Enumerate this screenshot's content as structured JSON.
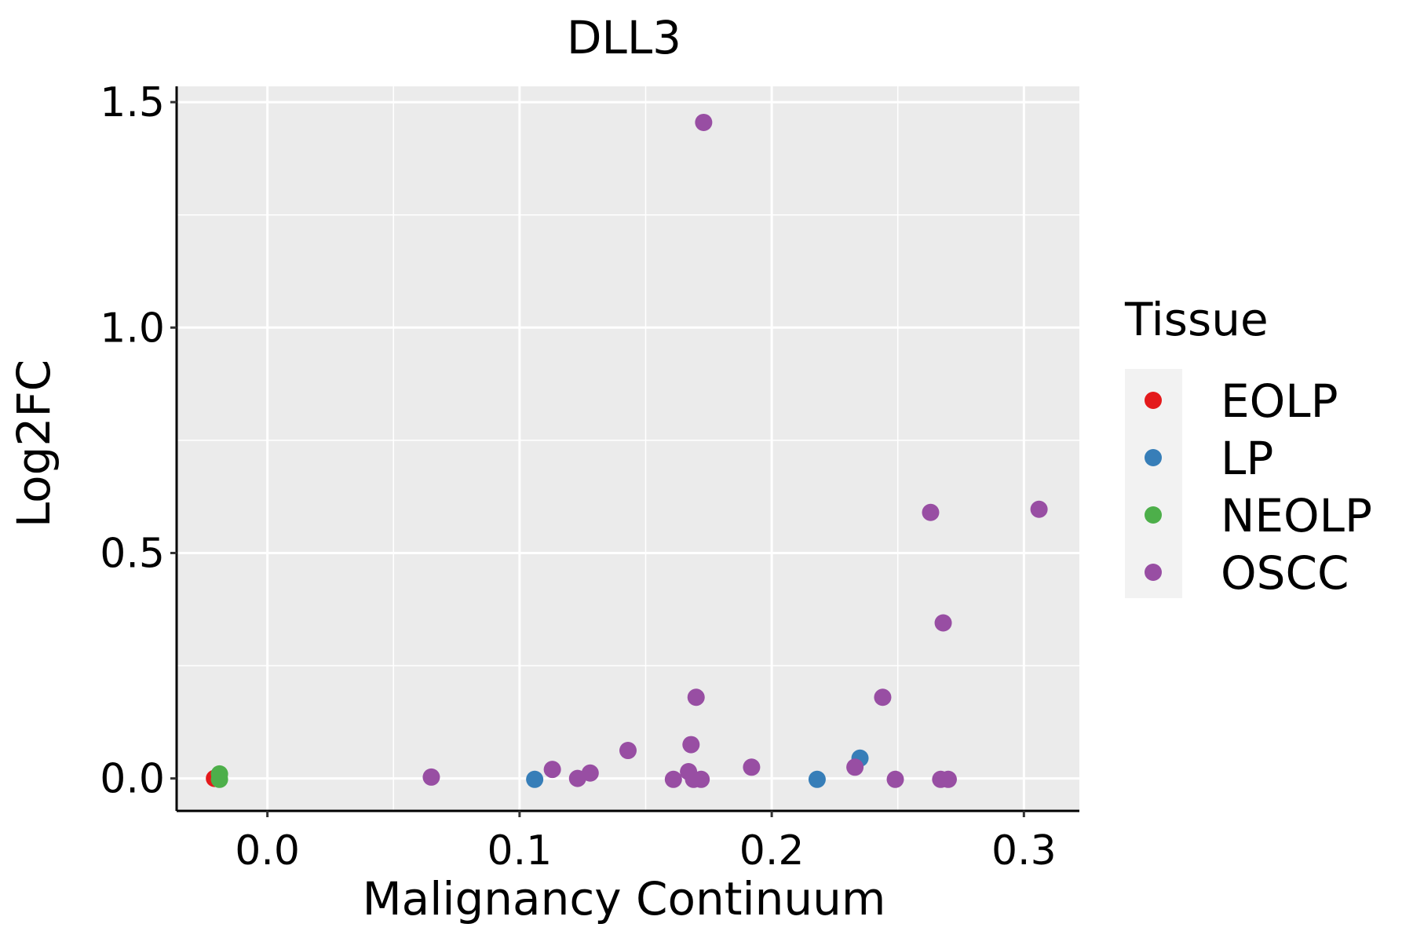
{
  "chart_data": {
    "type": "scatter",
    "title": "DLL3",
    "xlabel": "Malignancy Continuum",
    "ylabel": "Log2FC",
    "xlim": [
      -0.036,
      0.322
    ],
    "ylim": [
      -0.072,
      1.535
    ],
    "x_ticks": [
      0.0,
      0.1,
      0.2,
      0.3
    ],
    "x_tick_labels": [
      "0.0",
      "0.1",
      "0.2",
      "0.3"
    ],
    "y_ticks": [
      0.0,
      0.5,
      1.0,
      1.5
    ],
    "y_tick_labels": [
      "0.0",
      "0.5",
      "1.0",
      "1.5"
    ],
    "x_minor": [
      0.05,
      0.15,
      0.25
    ],
    "y_minor": [
      0.25,
      0.75,
      1.25
    ],
    "grid": true,
    "legend": {
      "title": "Tissue",
      "position": "right",
      "entries": [
        {
          "name": "EOLP",
          "color": "#E41A1C"
        },
        {
          "name": "LP",
          "color": "#377EB8"
        },
        {
          "name": "NEOLP",
          "color": "#4DAF4A"
        },
        {
          "name": "OSCC",
          "color": "#984EA3"
        }
      ]
    },
    "series": [
      {
        "name": "EOLP",
        "color": "#E41A1C",
        "points": [
          [
            -0.021,
            0.0
          ]
        ]
      },
      {
        "name": "LP",
        "color": "#377EB8",
        "points": [
          [
            0.106,
            -0.002
          ],
          [
            0.218,
            -0.002
          ],
          [
            0.235,
            0.045
          ]
        ]
      },
      {
        "name": "NEOLP",
        "color": "#4DAF4A",
        "points": [
          [
            -0.019,
            0.01
          ],
          [
            -0.019,
            -0.002
          ]
        ]
      },
      {
        "name": "OSCC",
        "color": "#984EA3",
        "points": [
          [
            0.065,
            0.003
          ],
          [
            0.113,
            0.02
          ],
          [
            0.123,
            0.0
          ],
          [
            0.128,
            0.012
          ],
          [
            0.143,
            0.062
          ],
          [
            0.161,
            -0.002
          ],
          [
            0.167,
            0.015
          ],
          [
            0.168,
            0.075
          ],
          [
            0.169,
            -0.002
          ],
          [
            0.17,
            0.18
          ],
          [
            0.172,
            -0.002
          ],
          [
            0.173,
            1.455
          ],
          [
            0.192,
            0.025
          ],
          [
            0.233,
            0.025
          ],
          [
            0.244,
            0.18
          ],
          [
            0.249,
            -0.002
          ],
          [
            0.263,
            0.59
          ],
          [
            0.267,
            -0.002
          ],
          [
            0.268,
            0.345
          ],
          [
            0.27,
            -0.002
          ],
          [
            0.306,
            0.597
          ]
        ]
      }
    ]
  }
}
